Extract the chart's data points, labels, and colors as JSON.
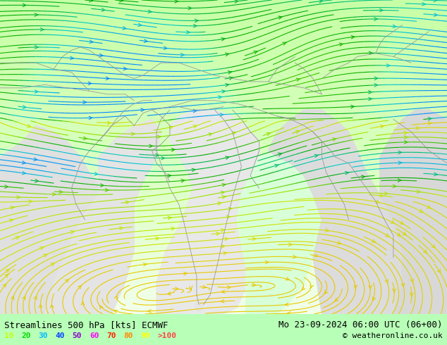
{
  "title_left": "Streamlines 500 hPa [kts] ECMWF",
  "title_right": "Mo 23-09-2024 06:00 UTC (06+00)",
  "copyright": "© weatheronline.co.uk",
  "legend_values": [
    "10",
    "20",
    "30",
    "40",
    "50",
    "60",
    "70",
    "80",
    "90",
    ">100"
  ],
  "legend_colors": [
    "#c8ff00",
    "#00dd00",
    "#00bbff",
    "#0044ff",
    "#8800cc",
    "#ff00ff",
    "#ff2200",
    "#ff8800",
    "#ffff00",
    "#ff4444"
  ],
  "bg_top_color": "#ccffaa",
  "bg_mid_color": "#aaffaa",
  "bg_low_color": "#f0fff0",
  "gray_land_color": "#e8e8e8",
  "border_color": "#888888",
  "figsize": [
    6.34,
    4.9
  ],
  "dpi": 100,
  "streamline_yellow": "#e8c800",
  "streamline_green": "#22bb00",
  "streamline_lgreen": "#88dd00",
  "streamline_cyan": "#00cccc"
}
